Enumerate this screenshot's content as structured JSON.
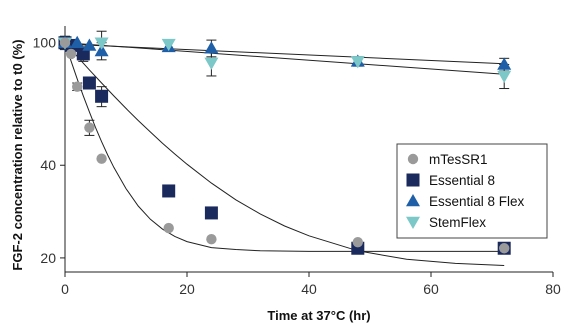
{
  "chart_data": {
    "type": "scatter",
    "title": "",
    "xlabel": "Time at 37°C (hr)",
    "ylabel": "FGF-2 concentration relative to t0 (%)",
    "xlim": [
      0,
      80
    ],
    "ylim": [
      18,
      110
    ],
    "x_ticks": [
      0,
      20,
      40,
      60,
      80
    ],
    "y_ticks": [
      20,
      40,
      100
    ],
    "y_scale": "log",
    "grid": false,
    "legend_position": "right",
    "series": [
      {
        "name": "mTesSR1",
        "marker": "circle",
        "color": "#9a9a9a",
        "points": [
          {
            "x": 0,
            "y": 100,
            "err": 4
          },
          {
            "x": 1,
            "y": 92
          },
          {
            "x": 2,
            "y": 72,
            "err": 2
          },
          {
            "x": 4,
            "y": 53,
            "err": 3
          },
          {
            "x": 6,
            "y": 42
          },
          {
            "x": 17,
            "y": 25
          },
          {
            "x": 24,
            "y": 23
          },
          {
            "x": 48,
            "y": 22.5
          },
          {
            "x": 72,
            "y": 21.5
          }
        ],
        "fit": [
          [
            0,
            100
          ],
          [
            1,
            87.1
          ],
          [
            2,
            76.3
          ],
          [
            3,
            67.2
          ],
          [
            4,
            59.6
          ],
          [
            5,
            53.1
          ],
          [
            6,
            47.7
          ],
          [
            7,
            43.2
          ],
          [
            8,
            39.4
          ],
          [
            10,
            33.6
          ],
          [
            12,
            29.5
          ],
          [
            14,
            26.7
          ],
          [
            16,
            24.8
          ],
          [
            18,
            23.5
          ],
          [
            20,
            22.6
          ],
          [
            24,
            21.6
          ],
          [
            28,
            21.3
          ],
          [
            32,
            21.1
          ],
          [
            40,
            21.0
          ],
          [
            56,
            21.0
          ],
          [
            72,
            21.0
          ]
        ]
      },
      {
        "name": "Essential 8",
        "marker": "square",
        "color": "#1b2a5c",
        "points": [
          {
            "x": 0,
            "y": 100,
            "err": 5
          },
          {
            "x": 1,
            "y": 98,
            "err": 4
          },
          {
            "x": 3,
            "y": 92,
            "err": 5
          },
          {
            "x": 4,
            "y": 74
          },
          {
            "x": 6,
            "y": 67,
            "err": 5
          },
          {
            "x": 17,
            "y": 33
          },
          {
            "x": 24,
            "y": 28
          },
          {
            "x": 48,
            "y": 21.5
          },
          {
            "x": 72,
            "y": 21.5
          }
        ],
        "fit": [
          [
            0,
            100
          ],
          [
            2,
            90.3
          ],
          [
            4,
            81.6
          ],
          [
            6,
            74.0
          ],
          [
            8,
            67.2
          ],
          [
            10,
            61.2
          ],
          [
            12,
            55.9
          ],
          [
            14,
            51.3
          ],
          [
            16,
            47.1
          ],
          [
            18,
            43.5
          ],
          [
            20,
            40.3
          ],
          [
            24,
            35.0
          ],
          [
            28,
            30.9
          ],
          [
            32,
            27.8
          ],
          [
            36,
            25.4
          ],
          [
            40,
            23.6
          ],
          [
            48,
            21.1
          ],
          [
            56,
            19.8
          ],
          [
            64,
            19.2
          ],
          [
            72,
            18.9
          ]
        ]
      },
      {
        "name": "Essential 8 Flex",
        "marker": "triangle-up",
        "color": "#1f5fa8",
        "points": [
          {
            "x": 0,
            "y": 100
          },
          {
            "x": 2,
            "y": 100
          },
          {
            "x": 4,
            "y": 98
          },
          {
            "x": 6,
            "y": 94,
            "err": 6
          },
          {
            "x": 17,
            "y": 97
          },
          {
            "x": 24,
            "y": 96,
            "err": 6
          },
          {
            "x": 48,
            "y": 87,
            "err": 3
          },
          {
            "x": 72,
            "y": 85,
            "err": 4
          }
        ],
        "fit": [
          [
            0,
            99
          ],
          [
            72,
            85.5
          ]
        ]
      },
      {
        "name": "StemFlex",
        "marker": "triangle-down",
        "color": "#7cc7c7",
        "points": [
          {
            "x": 0,
            "y": 100
          },
          {
            "x": 6,
            "y": 100,
            "err": 9
          },
          {
            "x": 17,
            "y": 99
          },
          {
            "x": 24,
            "y": 86,
            "err": 8
          },
          {
            "x": 48,
            "y": 87,
            "err": 3
          },
          {
            "x": 72,
            "y": 78,
            "err": 7
          }
        ],
        "fit": [
          [
            0,
            100
          ],
          [
            72,
            79
          ]
        ]
      }
    ]
  }
}
